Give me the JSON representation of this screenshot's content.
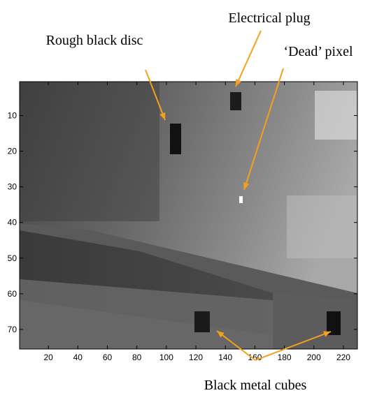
{
  "chart_data": {
    "type": "image",
    "xlim": [
      0.5,
      229.5
    ],
    "ylim": [
      0.5,
      75.5
    ],
    "y_reversed": true,
    "xticks": [
      20,
      40,
      60,
      80,
      100,
      120,
      140,
      160,
      180,
      200,
      220
    ],
    "yticks": [
      10,
      20,
      30,
      40,
      50,
      60,
      70
    ],
    "annotations": [
      "Rough black disc",
      "Electrical plug",
      "‘Dead’ pixel",
      "Black metal cubes"
    ],
    "annotation_color": "#f5a01a"
  }
}
